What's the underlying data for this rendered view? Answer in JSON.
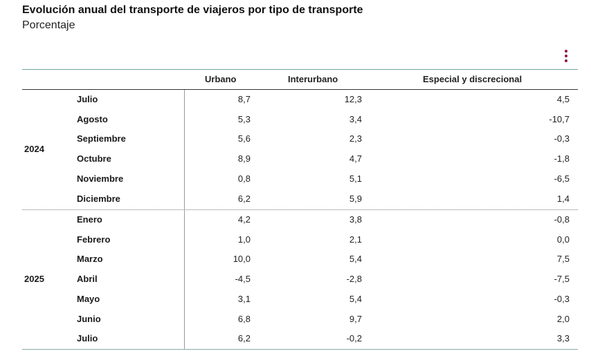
{
  "title": "Evolución anual del transporte de viajeros por tipo de transporte",
  "subtitle": "Porcentaje",
  "menu_icon": "more-vertical-icon",
  "accent_color": "#8a1c3b",
  "columns": [
    "Urbano",
    "Interurbano",
    "Especial y discrecional"
  ],
  "chart_data": {
    "type": "table",
    "title": "Evolución anual del transporte de viajeros por tipo de transporte",
    "subtitle": "Porcentaje",
    "columns": [
      "Urbano",
      "Interurbano",
      "Especial y discrecional"
    ],
    "groups": [
      {
        "year": "2024",
        "rows": [
          {
            "month": "Julio",
            "values": [
              "8,7",
              "12,3",
              "4,5"
            ]
          },
          {
            "month": "Agosto",
            "values": [
              "5,3",
              "3,4",
              "-10,7"
            ]
          },
          {
            "month": "Septiembre",
            "values": [
              "5,6",
              "2,3",
              "-0,3"
            ]
          },
          {
            "month": "Octubre",
            "values": [
              "8,9",
              "4,7",
              "-1,8"
            ]
          },
          {
            "month": "Noviembre",
            "values": [
              "0,8",
              "5,1",
              "-6,5"
            ]
          },
          {
            "month": "Diciembre",
            "values": [
              "6,2",
              "5,9",
              "1,4"
            ]
          }
        ]
      },
      {
        "year": "2025",
        "rows": [
          {
            "month": "Enero",
            "values": [
              "4,2",
              "3,8",
              "-0,8"
            ]
          },
          {
            "month": "Febrero",
            "values": [
              "1,0",
              "2,1",
              "0,0"
            ]
          },
          {
            "month": "Marzo",
            "values": [
              "10,0",
              "5,4",
              "7,5"
            ]
          },
          {
            "month": "Abril",
            "values": [
              "-4,5",
              "-2,8",
              "-7,5"
            ]
          },
          {
            "month": "Mayo",
            "values": [
              "3,1",
              "5,4",
              "-0,3"
            ]
          },
          {
            "month": "Junio",
            "values": [
              "6,8",
              "9,7",
              "2,0"
            ]
          },
          {
            "month": "Julio",
            "values": [
              "6,2",
              "-0,2",
              "3,3"
            ]
          }
        ]
      }
    ]
  }
}
